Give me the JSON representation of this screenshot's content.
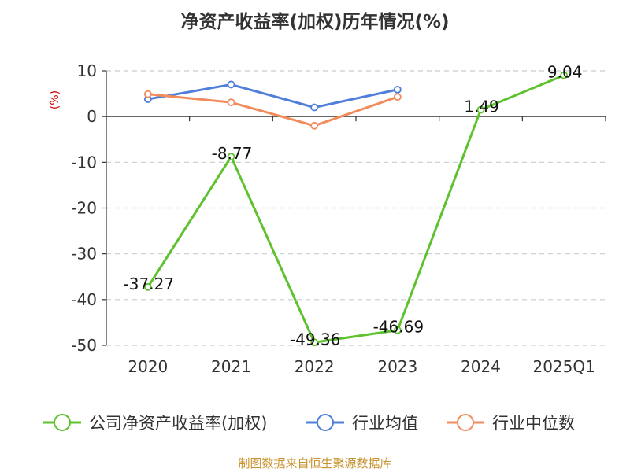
{
  "chart_data": {
    "type": "line",
    "title": "净资产收益率(加权)历年情况(%)",
    "unit_label": "(%)",
    "categories": [
      "2020",
      "2021",
      "2022",
      "2023",
      "2024",
      "2025Q1"
    ],
    "ylim": [
      -50,
      10
    ],
    "yticks": [
      "10",
      "0",
      "-10",
      "-20",
      "-30",
      "-40",
      "-50"
    ],
    "grid": true,
    "legend_position": "bottom",
    "series": [
      {
        "name": "公司净资产收益率(加权)",
        "color": "#5ec12e",
        "values": [
          -37.27,
          -8.77,
          -49.36,
          -46.69,
          1.49,
          9.04
        ],
        "labels": [
          "-37.27",
          "-8.77",
          "-49.36",
          "-46.69",
          "1.49",
          "9.04"
        ]
      },
      {
        "name": "行业均值",
        "color": "#4f7fdb",
        "values": [
          3.8,
          7.0,
          2.0,
          5.9,
          null,
          null
        ]
      },
      {
        "name": "行业中位数",
        "color": "#f28c5c",
        "values": [
          4.9,
          3.1,
          -2.0,
          4.3,
          null,
          null
        ]
      }
    ]
  },
  "source_text": "制图数据来自恒生聚源数据库"
}
